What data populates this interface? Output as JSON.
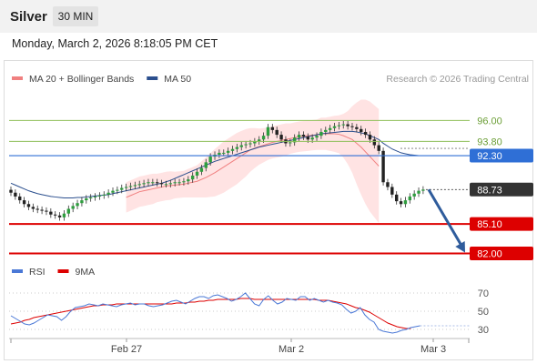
{
  "header": {
    "instrument": "Silver",
    "timeframe": "30 MIN"
  },
  "datetime": "Monday, March 2, 2026 8:18:05 PM CET",
  "credit": "Research © 2026 Trading Central",
  "colors": {
    "ma20": "#f08080",
    "ma50": "#2b4f8e",
    "bollinger_fill": "#ffd9d9",
    "candle_up": "#2e9e3e",
    "candle_down": "#222222",
    "support": "#dd0000",
    "resistance": "#8fbf5a",
    "pivot": "#2f6fd6",
    "last_price": "#333333",
    "arrow": "#2f5c9c",
    "rsi": "#4a78d6",
    "rsi_ma": "#dd0000"
  },
  "chart_data": [
    {
      "type": "candlestick",
      "legend": [
        {
          "name": "MA 20 + Bollinger Bands",
          "color": "#f08080"
        },
        {
          "name": "MA 50",
          "color": "#2b4f8e"
        }
      ],
      "ylim": [
        80.9,
        101.6
      ],
      "x_ticks": [
        "Feb 27",
        "Mar 2",
        "Mar 3"
      ],
      "close": [
        88.4,
        88.0,
        87.6,
        87.2,
        86.9,
        86.7,
        86.6,
        86.5,
        86.4,
        86.1,
        86.0,
        85.8,
        86.2,
        86.7,
        87.0,
        87.3,
        87.6,
        87.8,
        87.9,
        88.0,
        88.1,
        88.2,
        88.4,
        88.6,
        88.7,
        88.9,
        89.0,
        89.1,
        89.2,
        89.3,
        89.4,
        89.5,
        89.5,
        89.4,
        89.3,
        89.3,
        89.4,
        89.5,
        89.5,
        89.6,
        89.8,
        90.2,
        90.6,
        91.0,
        91.6,
        92.2,
        92.4,
        92.6,
        92.6,
        92.8,
        93.0,
        93.2,
        93.4,
        93.5,
        93.6,
        93.8,
        94.0,
        94.4,
        95.3,
        95.0,
        94.5,
        94.0,
        93.6,
        93.7,
        94.2,
        94.5,
        94.3,
        94.0,
        94.2,
        94.4,
        94.8,
        95.0,
        95.2,
        95.4,
        95.5,
        95.6,
        95.4,
        95.3,
        95.1,
        94.8,
        94.5,
        94.0,
        93.4,
        92.8,
        89.5,
        89.0,
        88.2,
        87.5,
        87.2,
        87.6,
        88.0,
        88.3,
        88.6,
        88.73
      ],
      "ma20_start_index": 26,
      "ma20": [
        87.9,
        88.1,
        88.3,
        88.5,
        88.6,
        88.7,
        88.8,
        88.9,
        89.0,
        89.1,
        89.15,
        89.2,
        89.25,
        89.3,
        89.4,
        89.5,
        89.6,
        89.8,
        90.0,
        90.25,
        90.5,
        90.8,
        91.1,
        91.4,
        91.7,
        92.0,
        92.3,
        92.6,
        92.9,
        93.1,
        93.25,
        93.4,
        93.55,
        93.7,
        93.8,
        93.9,
        94.0,
        94.1,
        94.2,
        94.3,
        94.35,
        94.4,
        94.45,
        94.5,
        94.6,
        94.6,
        94.6,
        94.6,
        94.55,
        94.4,
        94.2,
        94.0,
        93.6,
        93.2,
        92.7,
        92.2,
        91.7,
        91.2
      ],
      "bb_width": [
        1.6,
        1.6,
        1.6,
        1.6,
        1.6,
        1.6,
        1.6,
        1.5,
        1.5,
        1.5,
        1.5,
        1.4,
        1.4,
        1.4,
        1.5,
        1.6,
        1.7,
        1.9,
        2.1,
        2.3,
        2.5,
        2.6,
        2.7,
        2.7,
        2.7,
        2.7,
        2.6,
        2.5,
        2.3,
        2.1,
        1.9,
        1.8,
        1.7,
        1.7,
        1.7,
        1.7,
        1.7,
        1.6,
        1.6,
        1.6,
        1.6,
        1.6,
        1.6,
        1.6,
        1.7,
        1.7,
        1.8,
        1.9,
        2.0,
        2.3,
        2.8,
        3.5,
        4.3,
        5.0,
        5.5,
        5.8,
        5.9,
        6.0
      ],
      "ma50": [
        89.4,
        89.2,
        89.0,
        88.8,
        88.6,
        88.45,
        88.3,
        88.2,
        88.1,
        88.0,
        87.95,
        87.9,
        87.85,
        87.85,
        87.85,
        87.9,
        87.9,
        87.95,
        88.0,
        88.05,
        88.1,
        88.15,
        88.2,
        88.3,
        88.4,
        88.5,
        88.6,
        88.7,
        88.8,
        88.9,
        89.0,
        89.1,
        89.2,
        89.3,
        89.4,
        89.55,
        89.7,
        89.9,
        90.1,
        90.3,
        90.5,
        90.7,
        90.9,
        91.1,
        91.3,
        91.5,
        91.7,
        91.85,
        92.0,
        92.15,
        92.3,
        92.45,
        92.6,
        92.75,
        92.9,
        93.05,
        93.2,
        93.3,
        93.4,
        93.5,
        93.6,
        93.7,
        93.8,
        93.9,
        94.0,
        94.1,
        94.2,
        94.3,
        94.4,
        94.5,
        94.6,
        94.65,
        94.7,
        94.75,
        94.8,
        94.85,
        94.85,
        94.85,
        94.8,
        94.7,
        94.6,
        94.4,
        94.2,
        94.0,
        93.6,
        93.3,
        93.0,
        92.8,
        92.6,
        92.5,
        92.4,
        92.35,
        92.3,
        92.3
      ],
      "levels": [
        {
          "label": "96.00",
          "value": 96.0,
          "role": "resistance",
          "color": "#8fbf5a"
        },
        {
          "label": "93.80",
          "value": 93.8,
          "role": "resistance",
          "color": "#8fbf5a"
        },
        {
          "label": "92.30",
          "value": 92.3,
          "role": "pivot",
          "color": "#2f6fd6"
        },
        {
          "label": "88.73",
          "value": 88.73,
          "role": "last",
          "color": "#333333"
        },
        {
          "label": "85.10",
          "value": 85.1,
          "role": "support",
          "color": "#dd0000"
        },
        {
          "label": "82.00",
          "value": 82.0,
          "role": "support",
          "color": "#dd0000"
        }
      ],
      "forecast": {
        "from": 88.73,
        "to": 82.0
      }
    },
    {
      "type": "line",
      "legend": [
        {
          "name": "RSI",
          "color": "#4a78d6"
        },
        {
          "name": "9MA",
          "color": "#dd0000"
        }
      ],
      "ylim": [
        20,
        80
      ],
      "y_ticks": [
        70,
        50,
        30
      ],
      "rsi": [
        45,
        42,
        39,
        36,
        35,
        37,
        40,
        43,
        46,
        45,
        44,
        40,
        44,
        50,
        54,
        55,
        56,
        58,
        57,
        56,
        58,
        57,
        56,
        55,
        57,
        58,
        59,
        57,
        58,
        58,
        56,
        55,
        56,
        57,
        59,
        61,
        62,
        60,
        58,
        61,
        64,
        66,
        66,
        64,
        67,
        68,
        66,
        64,
        61,
        63,
        66,
        70,
        64,
        58,
        56,
        63,
        67,
        62,
        58,
        60,
        64,
        63,
        62,
        66,
        66,
        62,
        64,
        62,
        60,
        62,
        60,
        59,
        57,
        52,
        48,
        50,
        54,
        46,
        41,
        38,
        30,
        28,
        27,
        26,
        27,
        29,
        30,
        32,
        33,
        34
      ],
      "rsi_9ma": [
        36,
        37,
        38,
        40,
        41,
        43,
        44,
        45,
        46,
        47,
        48,
        49,
        50,
        51,
        52,
        53,
        54,
        55,
        56,
        56,
        57,
        57,
        57,
        58,
        58,
        58,
        58,
        58,
        58,
        58,
        58,
        58,
        58,
        58,
        58,
        58,
        59,
        59,
        59,
        60,
        60,
        61,
        61,
        62,
        62,
        63,
        63,
        63,
        63,
        63,
        64,
        64,
        64,
        63,
        63,
        63,
        63,
        63,
        63,
        63,
        63,
        63,
        63,
        63,
        63,
        63,
        63,
        62,
        62,
        62,
        61,
        60,
        59,
        58,
        56,
        54,
        53,
        51,
        49,
        46,
        43,
        40,
        37,
        35,
        33,
        32,
        31,
        31
      ]
    }
  ]
}
